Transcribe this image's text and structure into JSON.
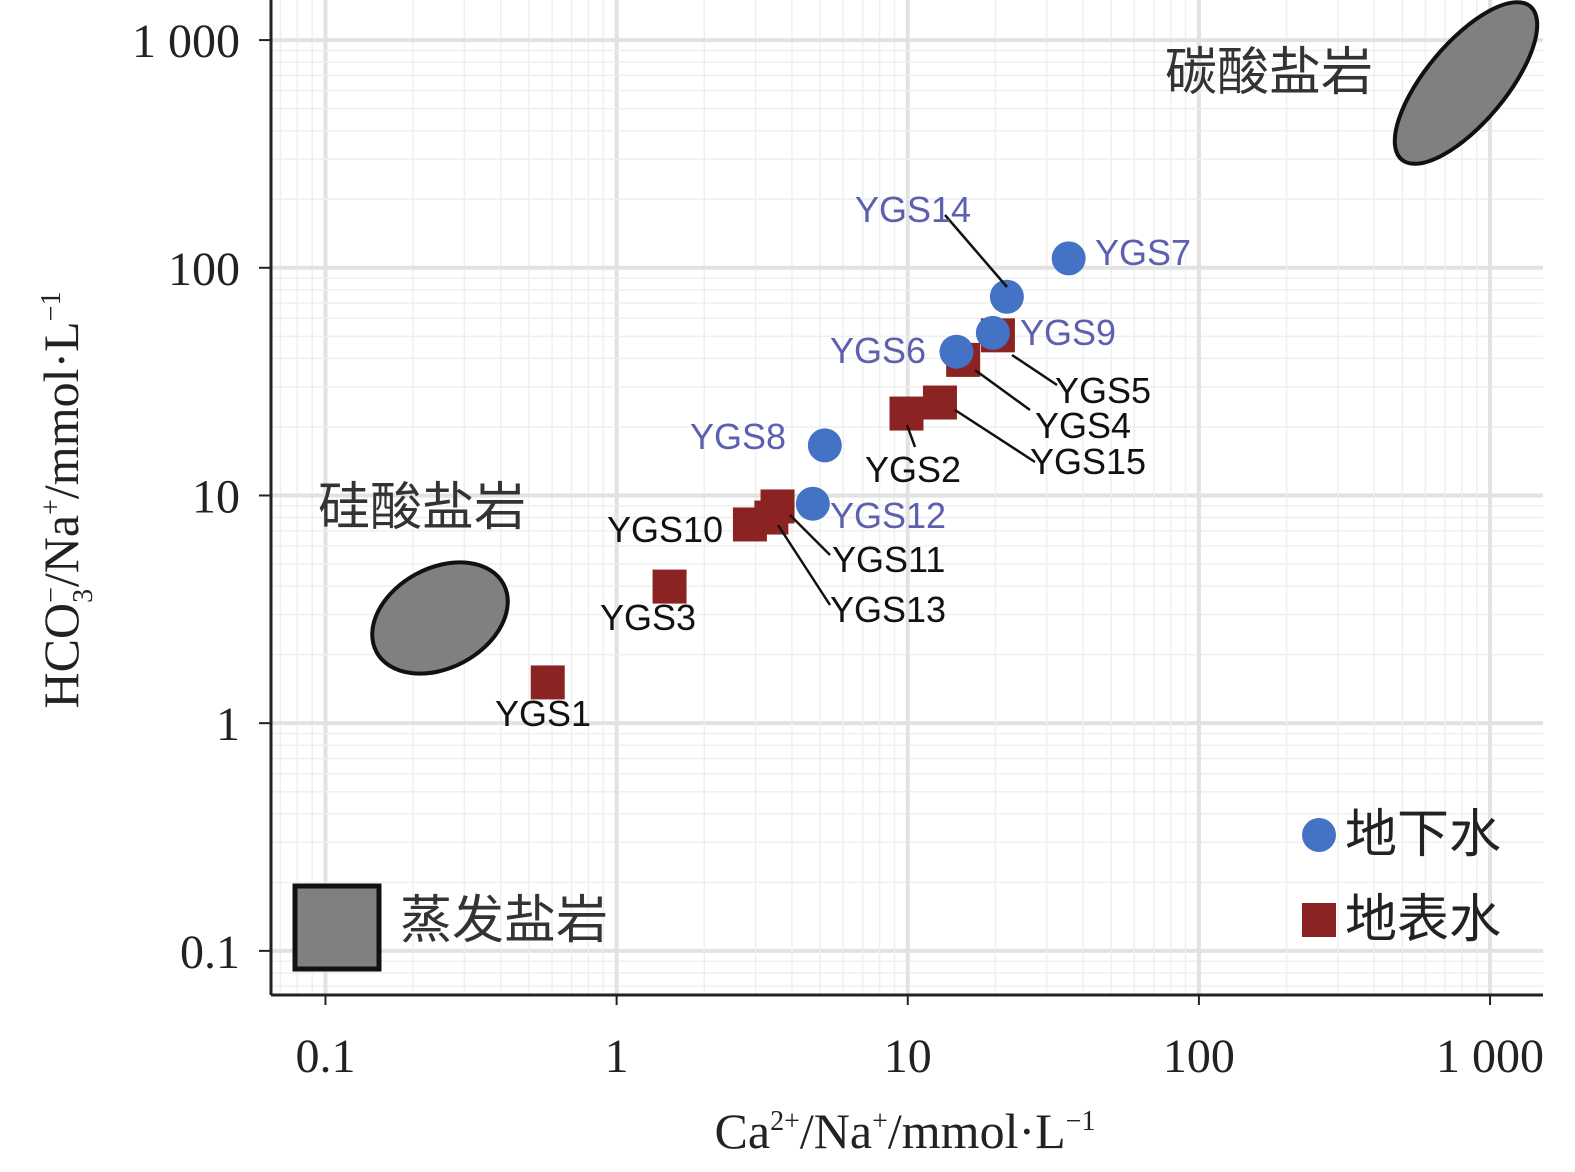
{
  "chart_data": {
    "type": "scatter",
    "xscale": "log",
    "yscale": "log",
    "xlabel": "Ca2+/Na+/mmol·L-1",
    "ylabel": "HCO3-/Na+/mmol·L-1",
    "xlim": [
      0.065,
      1520
    ],
    "ylim": [
      0.064,
      1500
    ],
    "grid": true,
    "xticks": [
      {
        "v": 0.1,
        "label": "0.1"
      },
      {
        "v": 1,
        "label": "1"
      },
      {
        "v": 10,
        "label": "10"
      },
      {
        "v": 100,
        "label": "100"
      },
      {
        "v": 1000,
        "label": "1 000"
      }
    ],
    "yticks": [
      {
        "v": 0.1,
        "label": "0.1"
      },
      {
        "v": 1,
        "label": "1"
      },
      {
        "v": 10,
        "label": "10"
      },
      {
        "v": 100,
        "label": "100"
      },
      {
        "v": 1000,
        "label": "1 000"
      }
    ],
    "series": [
      {
        "name": "地下水",
        "marker": "circle",
        "color": "#4472c4",
        "points": [
          {
            "label": "YGS7",
            "x": 35.7,
            "y": 110
          },
          {
            "label": "YGS14",
            "x": 21.9,
            "y": 74.6
          },
          {
            "label": "YGS9",
            "x": 19.6,
            "y": 51.8
          },
          {
            "label": "YGS6",
            "x": 14.7,
            "y": 42.8
          },
          {
            "label": "YGS8",
            "x": 5.19,
            "y": 16.6
          },
          {
            "label": "YGS12",
            "x": 4.72,
            "y": 9.2
          }
        ]
      },
      {
        "name": "地表水",
        "marker": "square",
        "color": "#8b2323",
        "points": [
          {
            "label": "YGS5",
            "x": 20.4,
            "y": 50.5
          },
          {
            "label": "YGS4",
            "x": 15.5,
            "y": 39.4
          },
          {
            "label": "YGS15",
            "x": 12.9,
            "y": 25.6
          },
          {
            "label": "YGS2",
            "x": 9.9,
            "y": 22.9
          },
          {
            "label": "YGS11",
            "x": 3.57,
            "y": 8.95
          },
          {
            "label": "YGS13",
            "x": 3.4,
            "y": 8.0
          },
          {
            "label": "YGS10",
            "x": 2.87,
            "y": 7.46
          },
          {
            "label": "YGS3",
            "x": 1.52,
            "y": 3.98
          },
          {
            "label": "YGS1",
            "x": 0.58,
            "y": 1.51
          }
        ]
      }
    ],
    "regions": [
      {
        "label": "碳酸盐岩"
      },
      {
        "label": "硅酸盐岩"
      },
      {
        "label": "蒸发盐岩"
      }
    ]
  }
}
